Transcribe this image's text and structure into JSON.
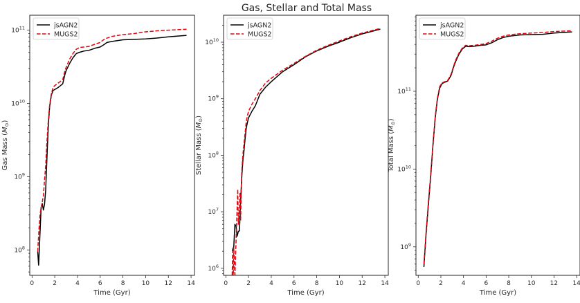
{
  "figure": {
    "title": "Gas, Stellar and Total Mass"
  },
  "chart_data": [
    {
      "type": "line",
      "xlabel": "Time (Gyr)",
      "ylabel": "Gas Mass ($M_\\odot$)",
      "ylabel_main": "Gas Mass (",
      "ylabel_symbol": "M",
      "ylabel_sub": "⊙",
      "ylabel_close": ")",
      "xlim": [
        -0.2,
        14.3
      ],
      "ylim": [
        45000000.0,
        160000000000.0
      ],
      "yscale": "log",
      "xticks": [
        0,
        2,
        4,
        6,
        8,
        10,
        12,
        14
      ],
      "yticks": [
        100000000.0,
        1000000000.0,
        10000000000.0,
        100000000000.0
      ],
      "ytick_labels": [
        {
          "base": "10",
          "exp": "8"
        },
        {
          "base": "10",
          "exp": "9"
        },
        {
          "base": "10",
          "exp": "10"
        },
        {
          "base": "10",
          "exp": "11"
        }
      ],
      "legend": {
        "loc": "upper-left"
      },
      "series": [
        {
          "name": "jsAGN2",
          "color": "#000000",
          "dash": "solid",
          "x": [
            0.5,
            0.58,
            0.68,
            0.8,
            0.9,
            1.0,
            1.1,
            1.2,
            1.35,
            1.45,
            1.55,
            1.7,
            1.85,
            2.0,
            2.3,
            2.7,
            2.9,
            3.0,
            3.3,
            3.6,
            3.9,
            4.2,
            4.6,
            5.0,
            5.6,
            6.0,
            6.3,
            6.6,
            7.0,
            8.0,
            9.0,
            10.0,
            11.0,
            12.0,
            13.6
          ],
          "y": [
            95000000.0,
            62000000.0,
            140000000.0,
            380000000.0,
            430000000.0,
            350000000.0,
            420000000.0,
            650000000.0,
            2500000000.0,
            5500000000.0,
            9000000000.0,
            13000000000.0,
            15000000000.0,
            15500000000.0,
            16500000000.0,
            18500000000.0,
            25000000000.0,
            28000000000.0,
            35000000000.0,
            42000000000.0,
            48000000000.0,
            50000000000.0,
            52000000000.0,
            53000000000.0,
            57000000000.0,
            59000000000.0,
            63000000000.0,
            68000000000.0,
            70000000000.0,
            74000000000.0,
            75000000000.0,
            76000000000.0,
            78000000000.0,
            81000000000.0,
            85000000000.0
          ]
        },
        {
          "name": "MUGS2",
          "color": "#e8000b",
          "dash": "dashed",
          "x": [
            0.5,
            0.6,
            0.7,
            0.8,
            0.9,
            1.0,
            1.1,
            1.2,
            1.3,
            1.4,
            1.55,
            1.7,
            1.85,
            2.0,
            2.3,
            2.7,
            2.9,
            3.0,
            3.3,
            3.6,
            3.9,
            4.2,
            4.6,
            5.0,
            5.5,
            6.0,
            6.3,
            6.6,
            7.0,
            8.0,
            9.0,
            10.0,
            11.0,
            12.0,
            13.6
          ],
          "y": [
            95000000.0,
            180000000.0,
            300000000.0,
            380000000.0,
            450000000.0,
            550000000.0,
            900000000.0,
            1400000000.0,
            2800000000.0,
            5000000000.0,
            9500000000.0,
            13500000000.0,
            16500000000.0,
            17500000000.0,
            19000000000.0,
            21000000000.0,
            28000000000.0,
            31000000000.0,
            40000000000.0,
            48000000000.0,
            55000000000.0,
            58000000000.0,
            59000000000.0,
            60000000000.0,
            64000000000.0,
            68000000000.0,
            74000000000.0,
            78000000000.0,
            82000000000.0,
            87000000000.0,
            90000000000.0,
            95000000000.0,
            98000000000.0,
            100000000000.0,
            103000000000.0
          ]
        }
      ]
    },
    {
      "type": "line",
      "xlabel": "Time (Gyr)",
      "ylabel": "Stellar Mass ($M_\\odot$)",
      "ylabel_main": "Stellar Mass (",
      "ylabel_symbol": "M",
      "ylabel_sub": "⊙",
      "ylabel_close": ")",
      "xlim": [
        -0.2,
        14.3
      ],
      "ylim": [
        750000.0,
        30000000000.0
      ],
      "yscale": "log",
      "xticks": [
        0,
        2,
        4,
        6,
        8,
        10,
        12,
        14
      ],
      "yticks": [
        1000000.0,
        10000000.0,
        100000000.0,
        1000000000.0,
        10000000000.0
      ],
      "ytick_labels": [
        {
          "base": "10",
          "exp": "6"
        },
        {
          "base": "10",
          "exp": "7"
        },
        {
          "base": "10",
          "exp": "8"
        },
        {
          "base": "10",
          "exp": "9"
        },
        {
          "base": "10",
          "exp": "10"
        }
      ],
      "legend": {
        "loc": "upper-left"
      },
      "series": [
        {
          "name": "jsAGN2",
          "color": "#000000",
          "dash": "solid",
          "x": [
            0.58,
            0.62,
            0.7,
            0.8,
            0.9,
            1.0,
            1.1,
            1.2,
            1.3,
            1.4,
            1.5,
            1.6,
            1.7,
            1.8,
            1.9,
            2.0,
            2.3,
            2.6,
            3.0,
            3.5,
            4.0,
            5.0,
            6.0,
            7.0,
            8.0,
            9.0,
            10.0,
            11.0,
            12.0,
            13.6
          ],
          "y": [
            2000000.0,
            2200000.0,
            2400000.0,
            6000000.0,
            5500000.0,
            3700000.0,
            4500000.0,
            4600000.0,
            15000000.0,
            40000000.0,
            80000000.0,
            120000000.0,
            200000000.0,
            300000000.0,
            380000000.0,
            460000000.0,
            600000000.0,
            750000000.0,
            1200000000.0,
            1600000000.0,
            2000000000.0,
            3000000000.0,
            4000000000.0,
            5500000000.0,
            7000000000.0,
            8500000000.0,
            10000000000.0,
            12000000000.0,
            14000000000.0,
            17000000000.0
          ]
        },
        {
          "name": "MUGS2",
          "color": "#e8000b",
          "dash": "dashed",
          "x": [
            0.55,
            0.6,
            0.65,
            0.7,
            0.8,
            0.9,
            1.0,
            1.05,
            1.1,
            1.2,
            1.25,
            1.3,
            1.4,
            1.5,
            1.6,
            1.7,
            1.8,
            1.9,
            2.0,
            2.3,
            2.6,
            3.0,
            3.5,
            4.0,
            5.0,
            6.0,
            7.0,
            8.0,
            9.0,
            10.0,
            11.0,
            12.0,
            13.6
          ],
          "y": [
            600000.0,
            2000000.0,
            600000.0,
            2300000.0,
            700000.0,
            3000000.0,
            13000000.0,
            25000000.0,
            6000000.0,
            12000000.0,
            22000000.0,
            7000000.0,
            50000000.0,
            100000000.0,
            160000000.0,
            250000000.0,
            400000000.0,
            500000000.0,
            600000000.0,
            800000000.0,
            1000000000.0,
            1400000000.0,
            1900000000.0,
            2300000000.0,
            3200000000.0,
            4200000000.0,
            5600000000.0,
            7200000000.0,
            8800000000.0,
            10500000000.0,
            12500000000.0,
            14500000000.0,
            17500000000.0
          ]
        }
      ]
    },
    {
      "type": "line",
      "xlabel": "Time (Gyr)",
      "ylabel": "Total Mass ($M_\\odot$)",
      "ylabel_main": "Total Mass (",
      "ylabel_symbol": "M",
      "ylabel_sub": "⊙",
      "ylabel_close": ")",
      "xlim": [
        -0.2,
        14.3
      ],
      "ylim": [
        430000000.0,
        950000000000.0
      ],
      "yscale": "log",
      "xticks": [
        0,
        2,
        4,
        6,
        8,
        10,
        12,
        14
      ],
      "yticks": [
        1000000000.0,
        10000000000.0,
        100000000000.0
      ],
      "ytick_labels": [
        {
          "base": "10",
          "exp": "9"
        },
        {
          "base": "10",
          "exp": "10"
        },
        {
          "base": "10",
          "exp": "11"
        }
      ],
      "legend": {
        "loc": "upper-left"
      },
      "series": [
        {
          "name": "jsAGN2",
          "color": "#000000",
          "dash": "solid",
          "x": [
            0.5,
            0.7,
            0.9,
            1.1,
            1.3,
            1.5,
            1.7,
            1.9,
            2.1,
            2.3,
            2.6,
            2.9,
            3.1,
            3.3,
            3.6,
            3.9,
            4.2,
            4.5,
            5.0,
            5.5,
            6.0,
            6.5,
            7.0,
            7.5,
            8.0,
            9.0,
            10.0,
            11.0,
            12.0,
            13.6
          ],
          "y": [
            550000000.0,
            1500000000.0,
            3500000000.0,
            8000000000.0,
            20000000000.0,
            45000000000.0,
            80000000000.0,
            110000000000.0,
            125000000000.0,
            130000000000.0,
            135000000000.0,
            160000000000.0,
            200000000000.0,
            240000000000.0,
            300000000000.0,
            350000000000.0,
            380000000000.0,
            375000000000.0,
            380000000000.0,
            390000000000.0,
            395000000000.0,
            420000000000.0,
            460000000000.0,
            490000000000.0,
            510000000000.0,
            530000000000.0,
            535000000000.0,
            540000000000.0,
            560000000000.0,
            580000000000.0
          ]
        },
        {
          "name": "MUGS2",
          "color": "#e8000b",
          "dash": "dashed",
          "x": [
            0.5,
            0.7,
            0.9,
            1.1,
            1.3,
            1.5,
            1.7,
            1.9,
            2.1,
            2.3,
            2.6,
            2.9,
            3.1,
            3.3,
            3.6,
            3.9,
            4.2,
            4.5,
            5.0,
            5.5,
            6.0,
            6.5,
            7.0,
            7.5,
            8.0,
            9.0,
            10.0,
            11.0,
            12.0,
            13.6
          ],
          "y": [
            600000000.0,
            1600000000.0,
            3800000000.0,
            8500000000.0,
            21000000000.0,
            47000000000.0,
            83000000000.0,
            115000000000.0,
            128000000000.0,
            132000000000.0,
            138000000000.0,
            165000000000.0,
            205000000000.0,
            250000000000.0,
            310000000000.0,
            360000000000.0,
            390000000000.0,
            385000000000.0,
            390000000000.0,
            400000000000.0,
            410000000000.0,
            440000000000.0,
            480000000000.0,
            510000000000.0,
            530000000000.0,
            550000000000.0,
            560000000000.0,
            570000000000.0,
            585000000000.0,
            600000000000.0
          ]
        }
      ]
    }
  ]
}
